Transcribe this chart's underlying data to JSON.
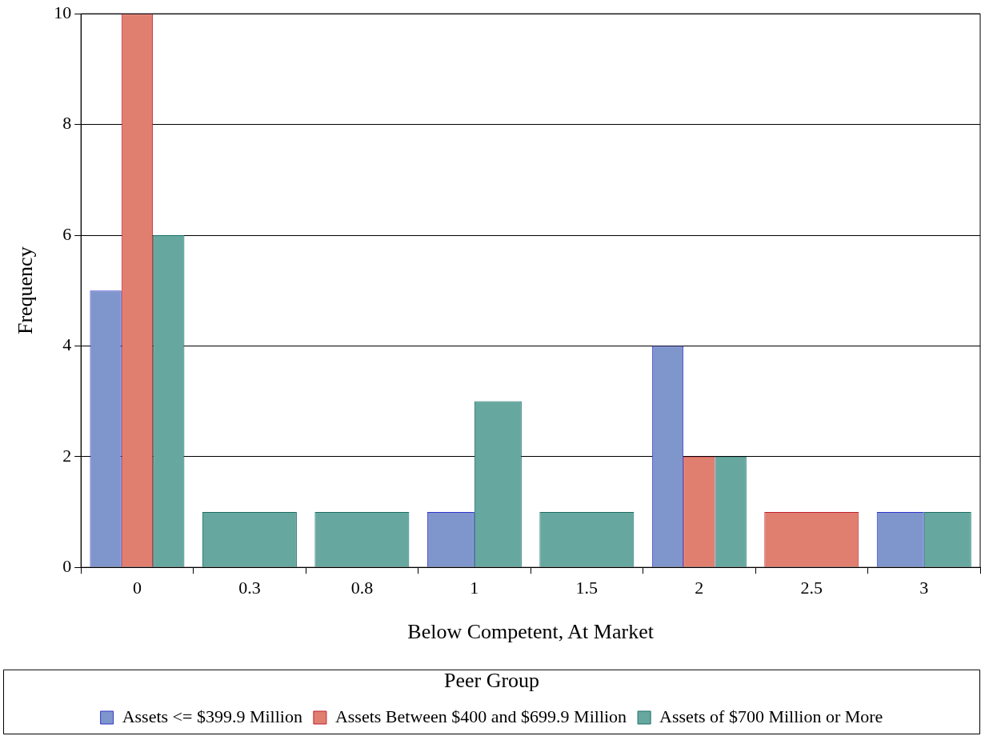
{
  "chart_data": {
    "type": "bar",
    "xlabel": "Below Competent, At Market",
    "ylabel": "Frequency",
    "legend_title": "Peer Group",
    "categories": [
      "0",
      "0.3",
      "0.8",
      "1",
      "1.5",
      "2",
      "2.5",
      "3"
    ],
    "series": [
      {
        "name": "Assets <= $399.9 Million",
        "color": "#7f96cc",
        "values": [
          5,
          null,
          null,
          1,
          null,
          4,
          null,
          1
        ]
      },
      {
        "name": "Assets Between $400 and $699.9 Million",
        "color": "#e07f6f",
        "values": [
          10,
          null,
          null,
          null,
          null,
          2,
          1,
          null
        ]
      },
      {
        "name": "Assets of $700 Million or More",
        "color": "#66a8a0",
        "values": [
          6,
          1,
          1,
          3,
          1,
          2,
          null,
          1
        ]
      }
    ],
    "ylim": [
      0,
      10
    ],
    "yticks": [
      0,
      2,
      4,
      6,
      8,
      10
    ],
    "grid": "y",
    "legend": "bottom"
  }
}
